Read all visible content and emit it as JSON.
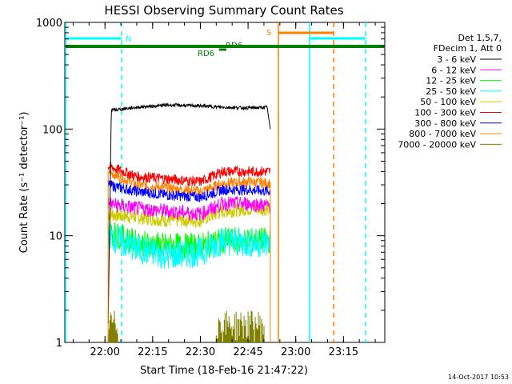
{
  "chart_data": {
    "type": "line",
    "title": "HESSI Observing Summary Count Rates",
    "xlabel": "Start Time (18-Feb-16 21:47:22)",
    "ylabel": "Count Rate (s⁻¹ detector⁻¹)",
    "yscale": "log",
    "ylim": [
      1,
      1000
    ],
    "xlim": [
      "21:47:22",
      "23:28:00"
    ],
    "x_ticks": [
      "22:00",
      "22:15",
      "22:30",
      "22:45",
      "23:00",
      "23:15"
    ],
    "y_ticks": [
      "1",
      "10",
      "100",
      "1000"
    ],
    "footer_date": "14-Oct-2017 10:53",
    "legend": {
      "position": "right",
      "header": [
        "Det 1,5,7,",
        "FDecim 1, Att 0"
      ]
    },
    "series": [
      {
        "name": "3 - 6 keV",
        "color": "#000000",
        "x": [
          "22:01",
          "22:02",
          "22:10",
          "22:20",
          "22:30",
          "22:37",
          "22:45",
          "22:51",
          "22:52"
        ],
        "values": [
          1.5,
          150,
          160,
          168,
          165,
          160,
          158,
          160,
          100
        ]
      },
      {
        "name": "6 - 12 keV",
        "color": "#ff00ff",
        "x": [
          "22:01",
          "22:10",
          "22:20",
          "22:30",
          "22:37",
          "22:45",
          "22:52"
        ],
        "values": [
          20,
          18,
          17,
          16,
          20,
          20,
          19
        ]
      },
      {
        "name": "12 - 25 keV",
        "color": "#00ff00",
        "x": [
          "22:01",
          "22:10",
          "22:20",
          "22:30",
          "22:37",
          "22:45",
          "22:52"
        ],
        "values": [
          11,
          8.5,
          8,
          8,
          9,
          9,
          9
        ]
      },
      {
        "name": "25 - 50 keV",
        "color": "#00ffff",
        "x": [
          "22:01",
          "22:10",
          "22:20",
          "22:30",
          "22:37",
          "22:45",
          "22:52"
        ],
        "values": [
          10,
          7.5,
          6.5,
          7,
          9,
          8.5,
          8.5
        ]
      },
      {
        "name": "50 - 100 keV",
        "color": "#cccc00",
        "x": [
          "22:01",
          "22:10",
          "22:20",
          "22:30",
          "22:37",
          "22:45",
          "22:52"
        ],
        "values": [
          16,
          15,
          14,
          14,
          17,
          18,
          18
        ]
      },
      {
        "name": "100 - 300 keV",
        "color": "#ff0000",
        "x": [
          "22:01",
          "22:10",
          "22:20",
          "22:30",
          "22:37",
          "22:45",
          "22:52"
        ],
        "values": [
          45,
          36,
          34,
          32,
          40,
          40,
          40
        ]
      },
      {
        "name": "300 - 800 keV",
        "color": "#0000ff",
        "x": [
          "22:01",
          "22:10",
          "22:20",
          "22:30",
          "22:37",
          "22:45",
          "22:52"
        ],
        "values": [
          30,
          26,
          24,
          23,
          27,
          27,
          26
        ]
      },
      {
        "name": "800 - 7000 keV",
        "color": "#ff8000",
        "x": [
          "22:01",
          "22:10",
          "22:20",
          "22:30",
          "22:37",
          "22:45",
          "22:52"
        ],
        "values": [
          40,
          30,
          28,
          26,
          31,
          32,
          31
        ]
      },
      {
        "name": "7000 - 20000 keV",
        "color": "#808000",
        "x": [
          "22:01",
          "22:06",
          "22:36",
          "22:52"
        ],
        "values": [
          1.5,
          1.2,
          1.5,
          1.3
        ]
      }
    ],
    "annotations": [
      {
        "text": "N",
        "color": "#00ffff"
      },
      {
        "text": "S",
        "color": "#ff8000"
      },
      {
        "text": "RD6",
        "color": "#008000"
      },
      {
        "text": "RD6",
        "color": "#008000"
      }
    ]
  }
}
